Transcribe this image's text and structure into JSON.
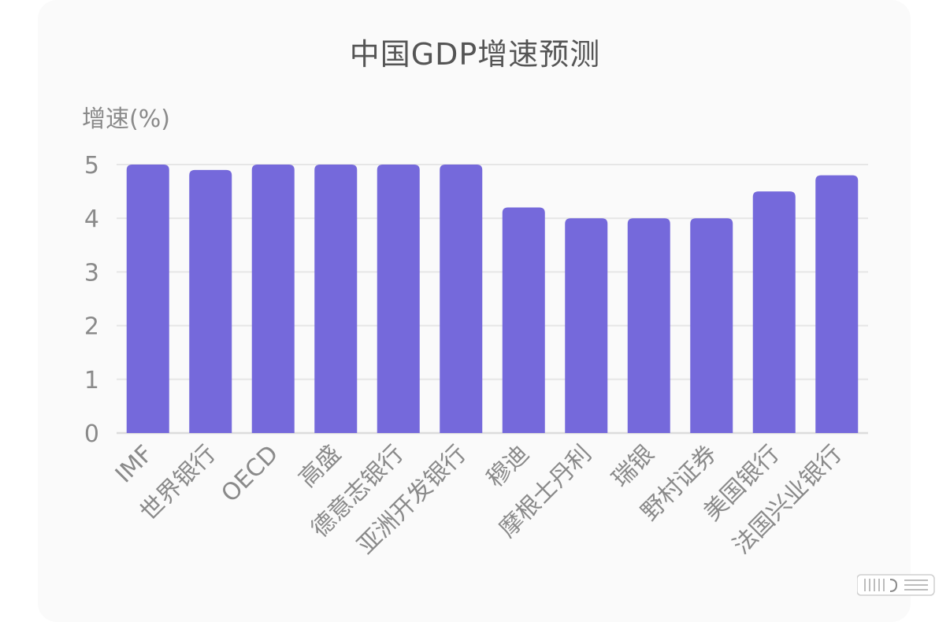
{
  "chart_data": {
    "type": "bar",
    "title": "中国GDP增速预测",
    "ylabel": "增速(%)",
    "xlabel": "",
    "categories": [
      "IMF",
      "世界银行",
      "OECD",
      "高盛",
      "德意志银行",
      "亚洲开发银行",
      "穆迪",
      "摩根士丹利",
      "瑞银",
      "野村证券",
      "美国银行",
      "法国兴业银行"
    ],
    "values": [
      5.0,
      4.9,
      5.0,
      5.0,
      5.0,
      5.0,
      4.2,
      4.0,
      4.0,
      4.0,
      4.5,
      4.8
    ],
    "ylim": [
      0,
      5
    ],
    "yticks": [
      0,
      1,
      2,
      3,
      4,
      5
    ],
    "grid": true,
    "bar_color": "#7569db",
    "grid_color": "#e6e6e6",
    "text_color": "#8a8a8a"
  }
}
